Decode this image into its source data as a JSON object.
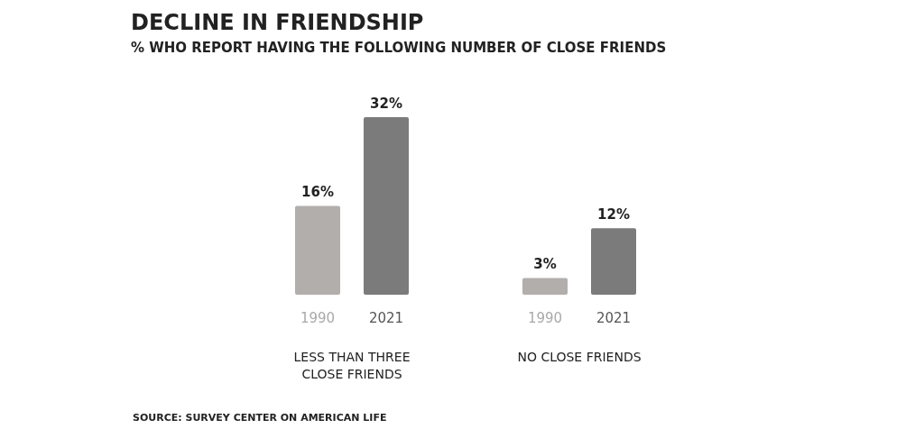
{
  "chart_data": {
    "type": "bar",
    "title": "DECLINE IN FRIENDSHIP",
    "subtitle": "% WHO REPORT HAVING THE FOLLOWING NUMBER OF CLOSE FRIENDS",
    "categories": [
      "LESS THAN THREE CLOSE FRIENDS",
      "NO CLOSE FRIENDS"
    ],
    "legend": false,
    "grid": false,
    "series": [
      {
        "name": "1990",
        "color": "#b1aeac",
        "values": [
          16,
          3
        ],
        "value_labels": [
          "16%",
          "3%"
        ]
      },
      {
        "name": "2021",
        "color": "#7b7b7b",
        "values": [
          32,
          12
        ],
        "value_labels": [
          "32%",
          "12%"
        ]
      }
    ],
    "annotations": [
      "SOURCE: SURVEY CENTER ON AMERICAN LIFE"
    ]
  }
}
